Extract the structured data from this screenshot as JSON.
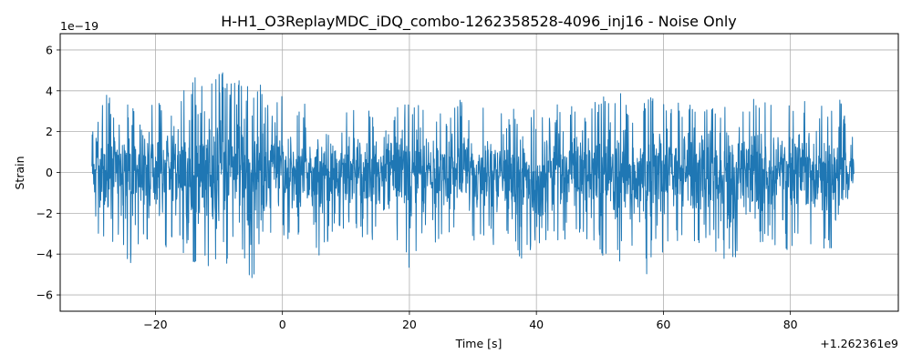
{
  "chart_data": {
    "type": "line",
    "title": "H-H1_O3ReplayMDC_iDQ_combo-1262358528-4096_inj16 - Noise Only",
    "xlabel": "Time [s]",
    "ylabel": "Strain",
    "x_offset_label": "+1.262361e9",
    "y_scale_label": "1e−19",
    "xlim": [
      -35,
      97
    ],
    "ylim": [
      -6.8,
      6.8
    ],
    "x_ticks": [
      -20,
      0,
      20,
      40,
      60,
      80
    ],
    "x_tick_labels": [
      "−20",
      "0",
      "20",
      "40",
      "60",
      "80"
    ],
    "y_ticks": [
      -6,
      -4,
      -2,
      0,
      2,
      4,
      6
    ],
    "y_tick_labels": [
      "−6",
      "−4",
      "−2",
      "0",
      "2",
      "4",
      "6"
    ],
    "grid": true,
    "line_color": "#1f77b4",
    "series": [
      {
        "x_range": [
          -30,
          90
        ],
        "envelope_x": [
          -30,
          -28,
          -26,
          -24,
          -22,
          -20,
          -18,
          -16,
          -14,
          -12,
          -10,
          -8,
          -6,
          -4,
          -2,
          0,
          2,
          4,
          6,
          8,
          10,
          12,
          14,
          16,
          18,
          20,
          22,
          24,
          26,
          28,
          30,
          32,
          34,
          36,
          38,
          40,
          42,
          44,
          46,
          48,
          50,
          52,
          54,
          56,
          58,
          60,
          62,
          64,
          66,
          68,
          70,
          72,
          74,
          76,
          78,
          80,
          82,
          84,
          86,
          88,
          90
        ],
        "envelope_upper": [
          2.0,
          4.3,
          3.0,
          3.5,
          2.8,
          3.8,
          3.2,
          4.0,
          4.5,
          5.8,
          4.8,
          5.3,
          4.2,
          5.0,
          3.5,
          3.8,
          3.0,
          3.5,
          3.2,
          3.3,
          3.0,
          3.5,
          3.4,
          3.0,
          3.3,
          3.4,
          3.7,
          3.2,
          3.5,
          3.6,
          3.4,
          3.8,
          3.3,
          3.0,
          3.6,
          3.4,
          3.0,
          3.5,
          3.6,
          3.2,
          4.0,
          4.2,
          3.8,
          3.5,
          4.0,
          3.6,
          3.5,
          3.7,
          3.6,
          3.5,
          3.4,
          3.3,
          3.6,
          3.9,
          3.3,
          3.5,
          3.6,
          3.2,
          3.6,
          3.8,
          1.7
        ],
        "envelope_lower": [
          -2.0,
          -4.3,
          -3.2,
          -4.5,
          -3.0,
          -4.0,
          -3.6,
          -4.0,
          -4.5,
          -5.0,
          -5.5,
          -4.7,
          -5.0,
          -6.1,
          -3.8,
          -3.2,
          -3.5,
          -3.3,
          -4.7,
          -3.2,
          -3.0,
          -3.2,
          -3.5,
          -3.4,
          -3.6,
          -5.2,
          -3.4,
          -3.6,
          -3.2,
          -3.0,
          -3.5,
          -3.6,
          -3.8,
          -3.4,
          -4.5,
          -3.5,
          -3.3,
          -3.4,
          -3.6,
          -3.5,
          -3.8,
          -5.0,
          -4.0,
          -4.2,
          -5.5,
          -3.8,
          -3.6,
          -3.6,
          -3.8,
          -3.7,
          -5.2,
          -3.7,
          -3.8,
          -3.6,
          -3.6,
          -4.0,
          -3.8,
          -3.5,
          -3.9,
          -3.6,
          -1.4
        ]
      }
    ]
  }
}
